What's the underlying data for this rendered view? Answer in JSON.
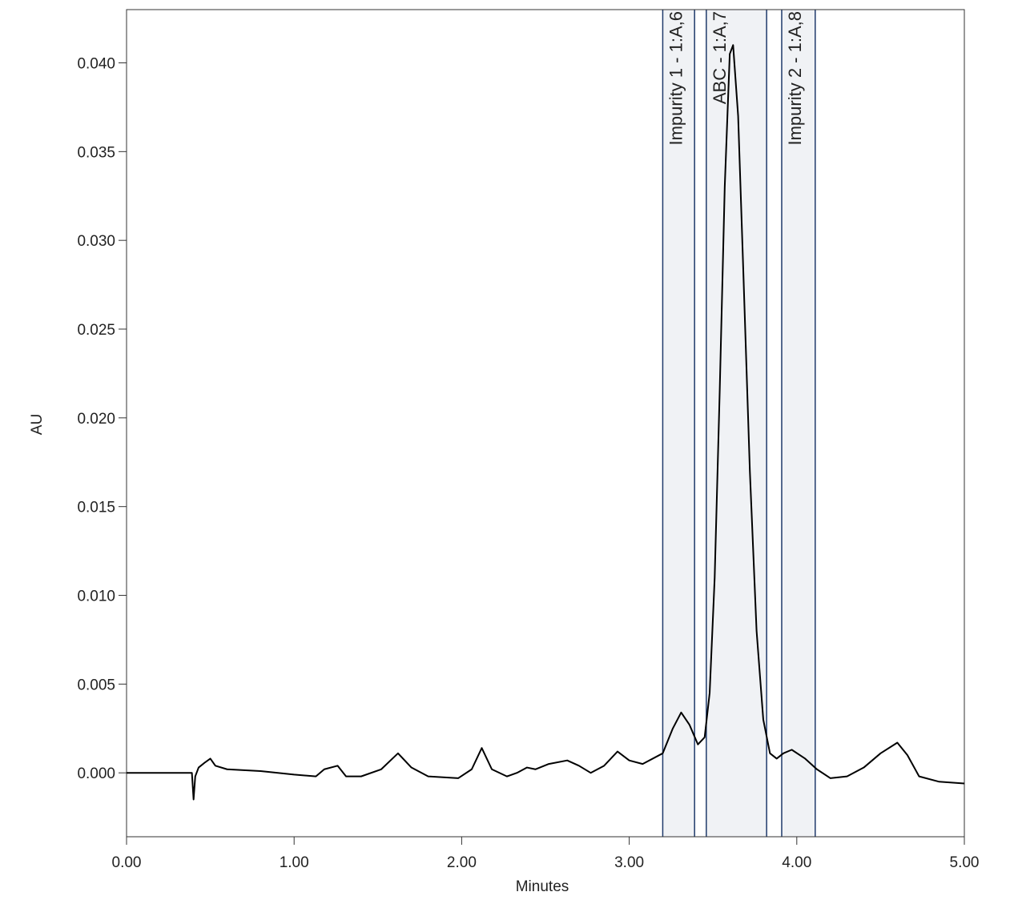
{
  "chart_data": {
    "type": "line",
    "xlabel": "Minutes",
    "ylabel": "AU",
    "xlim": [
      0,
      5
    ],
    "ylim": [
      -0.0036,
      0.043
    ],
    "xticks": [
      {
        "value": 0,
        "label": "0.00"
      },
      {
        "value": 1,
        "label": "1.00"
      },
      {
        "value": 2,
        "label": "2.00"
      },
      {
        "value": 3,
        "label": "3.00"
      },
      {
        "value": 4,
        "label": "4.00"
      },
      {
        "value": 5,
        "label": "5.00"
      }
    ],
    "yticks": [
      {
        "value": 0,
        "label": "0.000"
      },
      {
        "value": 0.005,
        "label": "0.005"
      },
      {
        "value": 0.01,
        "label": "0.010"
      },
      {
        "value": 0.015,
        "label": "0.015"
      },
      {
        "value": 0.02,
        "label": "0.020"
      },
      {
        "value": 0.025,
        "label": "0.025"
      },
      {
        "value": 0.03,
        "label": "0.030"
      },
      {
        "value": 0.035,
        "label": "0.035"
      },
      {
        "value": 0.04,
        "label": "0.040"
      }
    ],
    "regions": [
      {
        "label": "Impurity 1 - 1:A,6",
        "start": 3.2,
        "end": 3.39
      },
      {
        "label": "ABC - 1:A,7",
        "start": 3.46,
        "end": 3.82
      },
      {
        "label": "Impurity 2 - 1:A,8",
        "start": 3.91,
        "end": 4.11
      }
    ],
    "region_color": "#f0f2f5",
    "region_edge_color": "#1f3a6b",
    "x": [
      0,
      0.2,
      0.39,
      0.4,
      0.41,
      0.43,
      0.47,
      0.5,
      0.53,
      0.6,
      0.8,
      1,
      1.13,
      1.18,
      1.26,
      1.31,
      1.4,
      1.52,
      1.62,
      1.7,
      1.8,
      1.98,
      2.06,
      2.12,
      2.18,
      2.27,
      2.33,
      2.39,
      2.44,
      2.52,
      2.63,
      2.7,
      2.77,
      2.85,
      2.93,
      3,
      3.08,
      3.2,
      3.26,
      3.31,
      3.36,
      3.41,
      3.45,
      3.48,
      3.51,
      3.54,
      3.57,
      3.6,
      3.62,
      3.65,
      3.68,
      3.72,
      3.76,
      3.8,
      3.84,
      3.88,
      3.92,
      3.97,
      4.05,
      4.12,
      4.2,
      4.3,
      4.4,
      4.5,
      4.6,
      4.66,
      4.73,
      4.85,
      5
    ],
    "series": [
      {
        "color": "#000000",
        "values": [
          0,
          0,
          0,
          -0.0015,
          -0.0002,
          0.0003,
          0.0006,
          0.0008,
          0.0004,
          0.0002,
          0.0001,
          -0.0001,
          -0.0002,
          0.0002,
          0.0004,
          -0.0002,
          -0.0002,
          0.0002,
          0.0011,
          0.0003,
          -0.0002,
          -0.0003,
          0.0002,
          0.0014,
          0.0002,
          -0.0002,
          0,
          0.0003,
          0.0002,
          0.0005,
          0.0007,
          0.0004,
          0,
          0.0004,
          0.0012,
          0.0007,
          0.0005,
          0.0011,
          0.0025,
          0.0034,
          0.0027,
          0.0016,
          0.002,
          0.0045,
          0.011,
          0.0215,
          0.033,
          0.0405,
          0.041,
          0.037,
          0.0285,
          0.017,
          0.008,
          0.003,
          0.0011,
          0.0008,
          0.0011,
          0.0013,
          0.0008,
          0.0002,
          -0.0003,
          -0.0002,
          0.0003,
          0.0011,
          0.0017,
          0.001,
          -0.0002,
          -0.0005,
          -0.0006
        ]
      }
    ]
  }
}
